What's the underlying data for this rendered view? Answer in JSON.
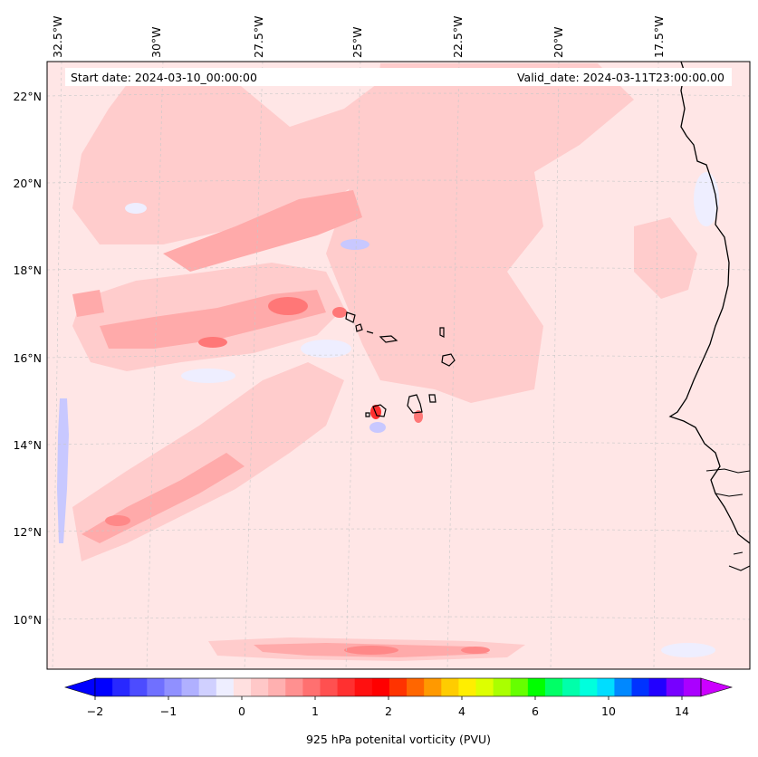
{
  "map": {
    "header": {
      "start_date": "Start date: 2024-03-10_00:00:00",
      "valid_date": "Valid_date: 2024-03-11T23:00:00.00"
    },
    "lon_labels": [
      "32.5°W",
      "30°W",
      "27.5°W",
      "25°W",
      "22.5°W",
      "20°W",
      "17.5°W"
    ],
    "lat_labels": [
      "22°N",
      "20°N",
      "18°N",
      "16°N",
      "14°N",
      "12°N",
      "10°N"
    ],
    "colorbar": {
      "tick_labels": [
        "−2",
        "−1",
        "0",
        "1",
        "2",
        "4",
        "6",
        "10",
        "14"
      ],
      "label": "925 hPa potenital vorticity (PVU)",
      "colors": [
        "#0000ff",
        "#2828ff",
        "#4c4cff",
        "#7070ff",
        "#9090ff",
        "#b0b0ff",
        "#d0d0ff",
        "#eeeeff",
        "#ffe0e0",
        "#ffc8c8",
        "#ffb0b0",
        "#ff9090",
        "#ff7070",
        "#ff5050",
        "#ff3030",
        "#ff1010",
        "#ff0000",
        "#ff3300",
        "#ff6600",
        "#ff9900",
        "#ffcc00",
        "#ffee00",
        "#ddff00",
        "#aaff00",
        "#66ff00",
        "#00ff00",
        "#00ff66",
        "#00ffaa",
        "#00ffdd",
        "#00ddff",
        "#0088ff",
        "#0033ff",
        "#2200ff",
        "#7700ff",
        "#aa00ff"
      ],
      "min_color": "#0000ff",
      "max_color": "#cc00ff"
    },
    "colors": {
      "background_field": "#ffe6e6",
      "light_red": "#ffcccc",
      "mid_red": "#ffaaaa",
      "strong_red": "#ff7777",
      "light_blue": "#eeeeff",
      "blue": "#c8c8ff",
      "coast": "#000000"
    }
  }
}
